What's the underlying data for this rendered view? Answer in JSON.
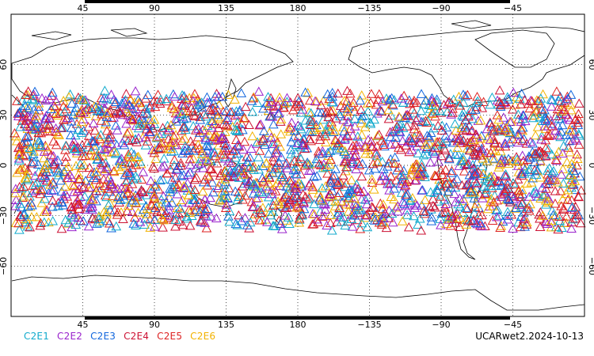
{
  "map": {
    "lon_ticks_top": [
      "45",
      "90",
      "135",
      "180",
      "−135",
      "−90",
      "−45"
    ],
    "lon_ticks_bottom": [
      "45",
      "90",
      "135",
      "180",
      "−135",
      "−90",
      "−45"
    ],
    "lat_ticks": [
      "60",
      "30",
      "0",
      "−30",
      "−60"
    ],
    "center_longitude": 180,
    "lat_range": [
      -90,
      90
    ],
    "occultation_band": [
      -40,
      45
    ],
    "grid": "dotted",
    "marker": "open-triangle"
  },
  "legend": [
    {
      "label": "C2E1",
      "color": "#11aacc"
    },
    {
      "label": "C2E2",
      "color": "#9922cc"
    },
    {
      "label": "C2E3",
      "color": "#1166dd"
    },
    {
      "label": "C2E4",
      "color": "#cc1133"
    },
    {
      "label": "C2E5",
      "color": "#dd2222"
    },
    {
      "label": "C2E6",
      "color": "#f2b200"
    }
  ],
  "stamp": "UCARwet2.2024-10-13"
}
